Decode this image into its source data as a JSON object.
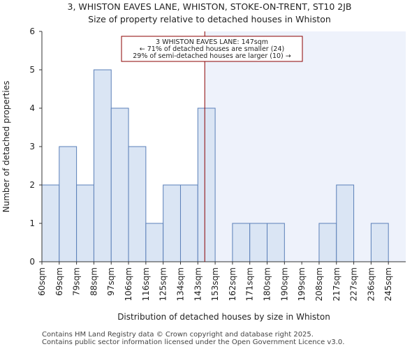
{
  "header": {
    "title_line1": "3, WHISTON EAVES LANE, WHISTON, STOKE-ON-TRENT, ST10 2JB",
    "title_line2": "Size of property relative to detached houses in Whiston"
  },
  "footer": {
    "line1": "Contains HM Land Registry data © Crown copyright and database right 2025.",
    "line2": "Contains public sector information licensed under the Open Government Licence v3.0."
  },
  "colors": {
    "bar_fill": "#dae5f4",
    "bar_stroke": "#5a7fb8",
    "highlight_region": "#eef2fb",
    "marker_line": "#8b0000",
    "annotation_border": "#8b0000"
  },
  "chart_data": {
    "type": "bar",
    "title": "Size of property relative to detached houses in Whiston",
    "xlabel": "Distribution of detached houses by size in Whiston",
    "ylabel": "Number of detached properties",
    "categories": [
      "60sqm",
      "69sqm",
      "79sqm",
      "88sqm",
      "97sqm",
      "106sqm",
      "116sqm",
      "125sqm",
      "134sqm",
      "143sqm",
      "153sqm",
      "162sqm",
      "171sqm",
      "180sqm",
      "190sqm",
      "199sqm",
      "208sqm",
      "217sqm",
      "227sqm",
      "236sqm",
      "245sqm"
    ],
    "values": [
      2,
      3,
      2,
      5,
      4,
      3,
      1,
      2,
      2,
      4,
      0,
      1,
      1,
      1,
      0,
      0,
      1,
      2,
      0,
      1,
      0
    ],
    "ylim": [
      0,
      6
    ],
    "yticks": [
      0,
      1,
      2,
      3,
      4,
      5,
      6
    ],
    "grid": false,
    "marker": {
      "value_sqm": 147,
      "label": "3 WHISTON EAVES LANE: 147sqm"
    },
    "annotation": {
      "line1": "3 WHISTON EAVES LANE: 147sqm",
      "line2": "← 71% of detached houses are smaller (24)",
      "line3": "29% of semi-detached houses are larger (10) →"
    }
  }
}
